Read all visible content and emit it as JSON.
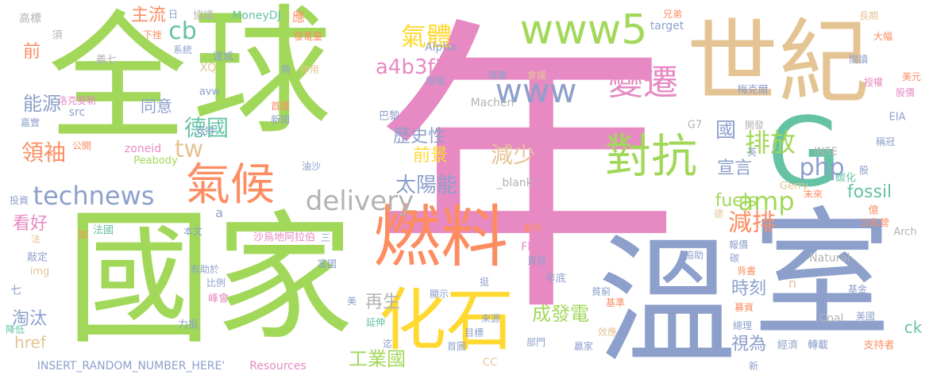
{
  "palette": {
    "green": "#a2d85a",
    "pink": "#e78ac3",
    "blue": "#8da0cb",
    "orange": "#fc8d62",
    "tan": "#e5c494",
    "teal": "#66c2a5",
    "yellow": "#ffd92f",
    "grey": "#b3b3b3"
  },
  "words": {
    "nian": "年",
    "quan": "全",
    "qiu": "球",
    "guo": "國",
    "jia": "家",
    "wen": "溫",
    "shi": "室",
    "shiji": "世紀",
    "g": "G",
    "ranliao": "燃料",
    "huashi": "化石",
    "duikang": "對抗",
    "qihou": "氣候",
    "bianqian": "變遷",
    "www5": "www5",
    "www": "www",
    "technews": "technews",
    "delivery": "delivery",
    "qiti": "氣體",
    "a4b": "a4b3f35b",
    "paifang": "排放",
    "amp": "amp",
    "php": "php",
    "jianpai": "減排",
    "cb": "cb",
    "tw": "tw",
    "deguo": "德國",
    "lingxiu": "領袖",
    "nengyuan": "能源",
    "kanhao": "看好",
    "taiyangneng": "太陽能",
    "jianshao": "減少",
    "lishixing": "歷史性",
    "qianjing": "前景",
    "chengfadian": "成發電",
    "gongyeguo": "工業國",
    "zaisheng": "再生",
    "shike": "時刻",
    "xuanyan": "宣言",
    "shiwei": "視為",
    "fuels": "fuels",
    "fossil": "fossil",
    "zhuliu": "主流",
    "qian": "前",
    "tongyi": "同意",
    "taotai": "淘汰",
    "href": "href",
    "ck": "ck",
    "guo2": "國",
    "blank": "_blank'",
    "natural": "Natural",
    "coal": "Coal",
    "insert": "INSERT_RANDOM_NUMBER_HERE'",
    "resources": "Resources",
    "flickr": "Flickr",
    "moneydj": "MoneyDJ",
    "alpha": "Alpha",
    "machen": "Machen",
    "target": "target",
    "inse": "INSE",
    "gerry": "Gerry",
    "arch": "Arch",
    "eia": "EIA",
    "g7": "G7",
    "zoneid": "zoneid",
    "peabody": "Peabody",
    "src": "src",
    "avw": "avw",
    "xq": "XQ",
    "img": "img",
    "n": "n",
    "a": "a",
    "cc": "CC",
    "gaobiao": "高標",
    "xu": "須",
    "ri": "日",
    "xieyi": "協議",
    "xiacuo": "下挫",
    "xitong": "系統",
    "yiqi": "義七",
    "dacheng": "達成",
    "ying": "應",
    "fadianliang": "發電量",
    "zengfu": "增幅",
    "gou": "夠",
    "tingyong": "停用",
    "xiongdi": "兄弟",
    "changqi": "長期",
    "dafu": "大幅",
    "yuedu": "閱讀",
    "shouquan": "授權",
    "meiyuan": "美元",
    "gujia": "股價",
    "meikeer": "梅克爾",
    "luokesaiqin": "洛克斐勒",
    "jiashi": "嘉實",
    "shoudu": "首度",
    "xinwen": "新聞",
    "bali": "巴黎",
    "kaifa": "開發",
    "zhichi": "支持",
    "gongkai": "公開",
    "meikuang": "煤礦",
    "huiyi": "會議",
    "ying2": "英",
    "chengguan": "稱冠",
    "tanhua": "碳化",
    "gu": "股",
    "weilai": "未來",
    "de": "德",
    "yi": "億",
    "gongsiying": "公私營",
    "touzi": "投資",
    "fa": "法",
    "jia2": "加",
    "fagguo": "法國",
    "benwen": "本文",
    "shatedi": "沙烏地阿拉伯",
    "san": "三",
    "chongshen": "重申",
    "yeshou": "頁首",
    "niandi": "年底",
    "baojia": "報價",
    "tan": "碳",
    "beishu": "背書",
    "xiezhu": "協助",
    "fuguo": "富國",
    "qiao": "敲定",
    "youzhuyu": "有助於",
    "bili": "比例",
    "fenghui": "峰會",
    "lichan": "力挺",
    "jiangdi": "降低",
    "qi": "七",
    "yanshen": "延伸",
    "laiyuan": "來源",
    "mubiao": "目標",
    "shouye": "首圖",
    "bumen": "部門",
    "xiaoying": "效應",
    "yingjia": "贏家",
    "pinqiong": "貧窮",
    "xianshi": "顯示",
    "jizhun": "基準",
    "mucai": "募資",
    "jingli": "總理",
    "meiguo": "美國",
    "jijin": "基金",
    "jingji": "經濟",
    "zhuanzai": "轉載",
    "zhichizhe": "支持者",
    "xin": "新",
    "qi2": "迄",
    "you": "油沙",
    "ting": "挺",
    "mei": "美"
  }
}
